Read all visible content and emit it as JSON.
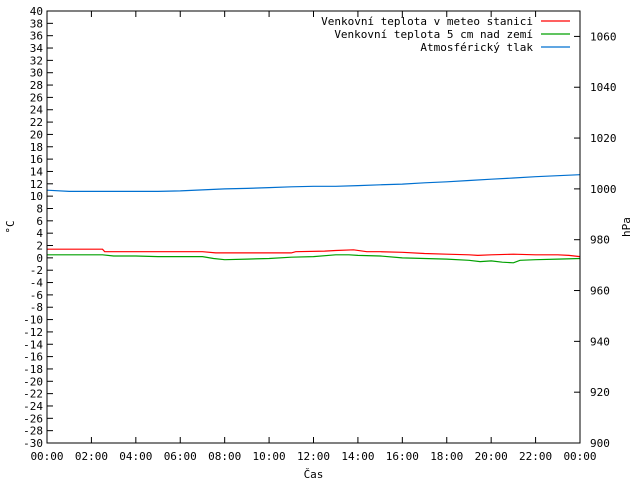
{
  "chart_data": {
    "type": "line",
    "xlabel": "Čas",
    "ylabel_left": "°C",
    "ylabel_right": "hPa",
    "legend_position": "top-right",
    "x_ticks": [
      "00:00",
      "02:00",
      "04:00",
      "06:00",
      "08:00",
      "10:00",
      "12:00",
      "14:00",
      "16:00",
      "18:00",
      "20:00",
      "22:00",
      "00:00"
    ],
    "x_range_hours": [
      0,
      24
    ],
    "ylim_left": [
      -30,
      40
    ],
    "ylim_right": [
      900,
      1070
    ],
    "y_ticks_left": [
      40,
      38,
      36,
      34,
      32,
      30,
      28,
      26,
      24,
      22,
      20,
      18,
      16,
      14,
      12,
      10,
      8,
      6,
      4,
      2,
      0,
      -2,
      -4,
      -6,
      -8,
      -10,
      -12,
      -14,
      -16,
      -18,
      -20,
      -22,
      -24,
      -26,
      -28,
      -30
    ],
    "y_ticks_right": [
      1060,
      1040,
      1020,
      1000,
      980,
      960,
      940,
      920,
      900
    ],
    "series": [
      {
        "name": "Venkovní teplota v meteo stanici",
        "color": "#ff0000",
        "axis": "left",
        "points": [
          [
            0,
            1.4
          ],
          [
            2.5,
            1.4
          ],
          [
            2.6,
            1.0
          ],
          [
            5,
            1.0
          ],
          [
            7,
            1.0
          ],
          [
            7.6,
            0.8
          ],
          [
            10,
            0.8
          ],
          [
            11,
            0.8
          ],
          [
            11.2,
            1.0
          ],
          [
            12.5,
            1.1
          ],
          [
            13,
            1.2
          ],
          [
            13.8,
            1.3
          ],
          [
            14.4,
            1.0
          ],
          [
            15,
            1.0
          ],
          [
            16,
            0.9
          ],
          [
            17,
            0.7
          ],
          [
            18,
            0.6
          ],
          [
            19,
            0.5
          ],
          [
            19.4,
            0.4
          ],
          [
            20,
            0.5
          ],
          [
            21,
            0.6
          ],
          [
            22,
            0.5
          ],
          [
            23,
            0.5
          ],
          [
            23.5,
            0.4
          ],
          [
            24,
            0.2
          ]
        ]
      },
      {
        "name": "Venkovní teplota 5 cm nad zemí",
        "color": "#00a000",
        "axis": "left",
        "points": [
          [
            0,
            0.5
          ],
          [
            2.5,
            0.5
          ],
          [
            3,
            0.3
          ],
          [
            4,
            0.3
          ],
          [
            5,
            0.2
          ],
          [
            7,
            0.2
          ],
          [
            7.5,
            -0.1
          ],
          [
            8,
            -0.3
          ],
          [
            9,
            -0.2
          ],
          [
            10,
            -0.1
          ],
          [
            11,
            0.1
          ],
          [
            12,
            0.2
          ],
          [
            13,
            0.5
          ],
          [
            13.6,
            0.5
          ],
          [
            14,
            0.4
          ],
          [
            15,
            0.3
          ],
          [
            16,
            0
          ],
          [
            17,
            -0.1
          ],
          [
            18,
            -0.2
          ],
          [
            19,
            -0.4
          ],
          [
            19.5,
            -0.6
          ],
          [
            20,
            -0.5
          ],
          [
            20.5,
            -0.7
          ],
          [
            21,
            -0.8
          ],
          [
            21.3,
            -0.4
          ],
          [
            22,
            -0.3
          ],
          [
            23,
            -0.2
          ],
          [
            24,
            -0.1
          ]
        ]
      },
      {
        "name": "Atmosférický tlak",
        "color": "#0070d0",
        "axis": "right",
        "points": [
          [
            0,
            999.5
          ],
          [
            1,
            999.0
          ],
          [
            2,
            999.0
          ],
          [
            3,
            999.0
          ],
          [
            4,
            999.0
          ],
          [
            5,
            999.0
          ],
          [
            6,
            999.2
          ],
          [
            7,
            999.6
          ],
          [
            8,
            1000.0
          ],
          [
            9,
            1000.2
          ],
          [
            10,
            1000.5
          ],
          [
            11,
            1000.8
          ],
          [
            12,
            1001.0
          ],
          [
            13,
            1001.0
          ],
          [
            14,
            1001.3
          ],
          [
            15,
            1001.6
          ],
          [
            16,
            1001.9
          ],
          [
            17,
            1002.4
          ],
          [
            18,
            1002.8
          ],
          [
            19,
            1003.3
          ],
          [
            20,
            1003.8
          ],
          [
            21,
            1004.3
          ],
          [
            22,
            1004.8
          ],
          [
            23,
            1005.2
          ],
          [
            24,
            1005.6
          ]
        ]
      }
    ]
  }
}
